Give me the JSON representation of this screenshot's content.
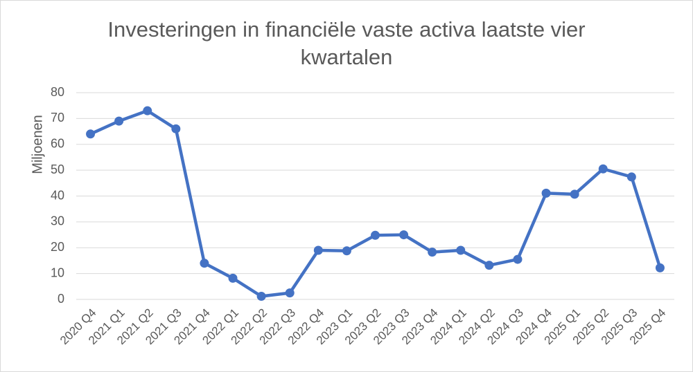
{
  "chart_data": {
    "type": "line",
    "title_line1": "Investeringen in financiële vaste activa laatste vier",
    "title_line2": "kwartalen",
    "xlabel": "",
    "ylabel": "Miljoenen",
    "ylim": [
      0,
      80
    ],
    "yticks": [
      0,
      10,
      20,
      30,
      40,
      50,
      60,
      70,
      80
    ],
    "grid": true,
    "categories": [
      "2020 Q4",
      "2021 Q1",
      "2021 Q2",
      "2021 Q3",
      "2021 Q4",
      "2022 Q1",
      "2022 Q2",
      "2022 Q3",
      "2022 Q4",
      "2023 Q1",
      "2023 Q2",
      "2023 Q3",
      "2023 Q4",
      "2024 Q1",
      "2024 Q2",
      "2024 Q3",
      "2024 Q4",
      "2025 Q1",
      "2025 Q2",
      "2025 Q3",
      "2025 Q4"
    ],
    "series": [
      {
        "values": [
          64,
          69,
          73,
          66,
          14,
          8.2,
          1.2,
          2.5,
          19,
          18.8,
          24.8,
          25,
          18.3,
          19,
          13.2,
          15.5,
          41.1,
          40.7,
          50.5,
          47.4,
          12.2
        ]
      }
    ],
    "colors": {
      "line": "#4472c4",
      "grid": "#d9d9d9",
      "text": "#595959"
    }
  }
}
